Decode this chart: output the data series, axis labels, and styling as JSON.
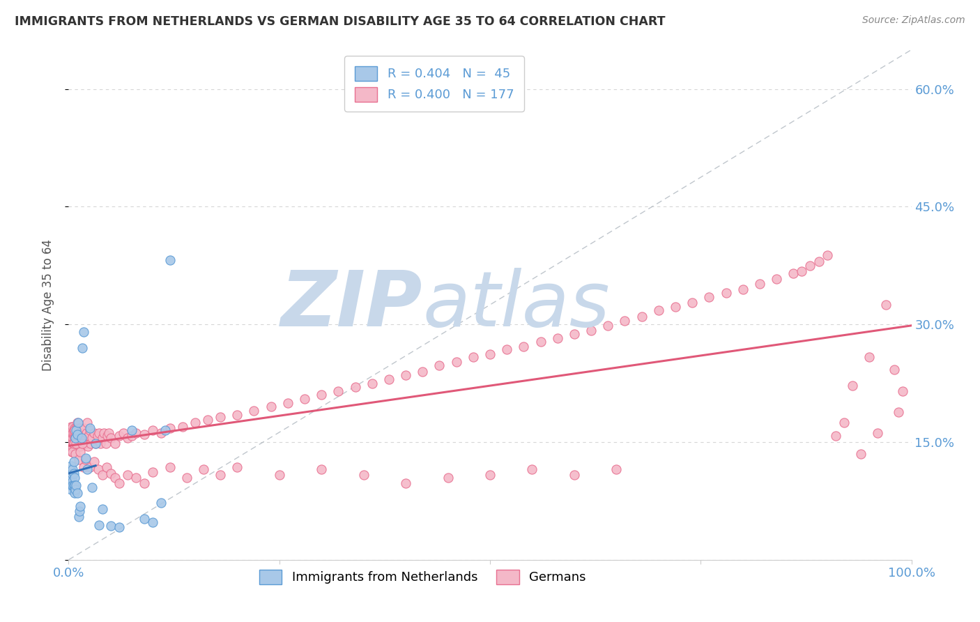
{
  "title": "IMMIGRANTS FROM NETHERLANDS VS GERMAN DISABILITY AGE 35 TO 64 CORRELATION CHART",
  "source": "Source: ZipAtlas.com",
  "ylabel": "Disability Age 35 to 64",
  "watermark_zip": "ZIP",
  "watermark_atlas": "atlas",
  "xlim": [
    0.0,
    1.0
  ],
  "ylim": [
    0.0,
    0.65
  ],
  "yticks": [
    0.0,
    0.15,
    0.3,
    0.45,
    0.6
  ],
  "xticks": [
    0.0,
    0.25,
    0.5,
    0.75,
    1.0
  ],
  "blue_color": "#a8c8e8",
  "pink_color": "#f4b8c8",
  "blue_edge": "#5b9bd5",
  "pink_edge": "#e87090",
  "trend_blue": "#3070b8",
  "trend_pink": "#e05878",
  "grid_color": "#cccccc",
  "background": "#ffffff",
  "title_color": "#333333",
  "axis_label_color": "#555555",
  "tick_color": "#5b9bd5",
  "watermark_color": "#c8d8ea",
  "legend_text_color": "#5b9bd5",
  "nl_x": [
    0.001,
    0.002,
    0.002,
    0.003,
    0.003,
    0.003,
    0.004,
    0.004,
    0.005,
    0.005,
    0.005,
    0.006,
    0.006,
    0.006,
    0.007,
    0.007,
    0.007,
    0.008,
    0.008,
    0.009,
    0.009,
    0.01,
    0.01,
    0.011,
    0.012,
    0.013,
    0.014,
    0.015,
    0.016,
    0.018,
    0.02,
    0.022,
    0.025,
    0.028,
    0.032,
    0.036,
    0.04,
    0.05,
    0.06,
    0.075,
    0.09,
    0.1,
    0.11,
    0.115,
    0.12
  ],
  "nl_y": [
    0.095,
    0.1,
    0.115,
    0.09,
    0.105,
    0.12,
    0.095,
    0.11,
    0.1,
    0.095,
    0.115,
    0.11,
    0.125,
    0.095,
    0.105,
    0.095,
    0.085,
    0.09,
    0.155,
    0.095,
    0.165,
    0.085,
    0.16,
    0.175,
    0.055,
    0.062,
    0.068,
    0.155,
    0.27,
    0.29,
    0.13,
    0.115,
    0.168,
    0.092,
    0.148,
    0.044,
    0.065,
    0.043,
    0.042,
    0.165,
    0.052,
    0.048,
    0.073,
    0.165,
    0.382
  ],
  "de_x": [
    0.001,
    0.001,
    0.001,
    0.002,
    0.002,
    0.002,
    0.002,
    0.003,
    0.003,
    0.003,
    0.003,
    0.003,
    0.003,
    0.004,
    0.004,
    0.004,
    0.004,
    0.004,
    0.005,
    0.005,
    0.005,
    0.005,
    0.005,
    0.006,
    0.006,
    0.006,
    0.006,
    0.007,
    0.007,
    0.007,
    0.007,
    0.008,
    0.008,
    0.008,
    0.008,
    0.009,
    0.009,
    0.009,
    0.01,
    0.01,
    0.01,
    0.01,
    0.011,
    0.011,
    0.011,
    0.012,
    0.012,
    0.012,
    0.013,
    0.013,
    0.014,
    0.014,
    0.015,
    0.015,
    0.016,
    0.016,
    0.017,
    0.018,
    0.019,
    0.02,
    0.021,
    0.022,
    0.023,
    0.024,
    0.025,
    0.026,
    0.028,
    0.03,
    0.032,
    0.034,
    0.036,
    0.038,
    0.04,
    0.042,
    0.044,
    0.046,
    0.048,
    0.05,
    0.055,
    0.06,
    0.065,
    0.07,
    0.075,
    0.08,
    0.09,
    0.1,
    0.11,
    0.12,
    0.135,
    0.15,
    0.165,
    0.18,
    0.2,
    0.22,
    0.24,
    0.26,
    0.28,
    0.3,
    0.32,
    0.34,
    0.36,
    0.38,
    0.4,
    0.42,
    0.44,
    0.46,
    0.48,
    0.5,
    0.52,
    0.54,
    0.56,
    0.58,
    0.6,
    0.62,
    0.64,
    0.66,
    0.68,
    0.7,
    0.72,
    0.74,
    0.76,
    0.78,
    0.8,
    0.82,
    0.84,
    0.86,
    0.87,
    0.88,
    0.89,
    0.9,
    0.91,
    0.92,
    0.93,
    0.94,
    0.95,
    0.96,
    0.97,
    0.98,
    0.985,
    0.99,
    0.005,
    0.006,
    0.007,
    0.008,
    0.009,
    0.01,
    0.012,
    0.014,
    0.016,
    0.018,
    0.02,
    0.025,
    0.03,
    0.035,
    0.04,
    0.045,
    0.05,
    0.055,
    0.06,
    0.07,
    0.08,
    0.09,
    0.1,
    0.12,
    0.14,
    0.16,
    0.18,
    0.2,
    0.25,
    0.3,
    0.35,
    0.4,
    0.45,
    0.5,
    0.55,
    0.6,
    0.65
  ],
  "de_y": [
    0.155,
    0.165,
    0.145,
    0.16,
    0.155,
    0.165,
    0.14,
    0.158,
    0.162,
    0.148,
    0.155,
    0.17,
    0.145,
    0.158,
    0.162,
    0.148,
    0.138,
    0.168,
    0.155,
    0.148,
    0.162,
    0.17,
    0.145,
    0.158,
    0.165,
    0.148,
    0.162,
    0.155,
    0.148,
    0.168,
    0.145,
    0.158,
    0.165,
    0.148,
    0.162,
    0.155,
    0.148,
    0.168,
    0.155,
    0.148,
    0.162,
    0.175,
    0.145,
    0.158,
    0.165,
    0.148,
    0.162,
    0.155,
    0.148,
    0.168,
    0.145,
    0.158,
    0.165,
    0.148,
    0.162,
    0.155,
    0.148,
    0.168,
    0.155,
    0.148,
    0.162,
    0.175,
    0.145,
    0.158,
    0.165,
    0.148,
    0.155,
    0.162,
    0.148,
    0.158,
    0.162,
    0.148,
    0.155,
    0.162,
    0.148,
    0.158,
    0.162,
    0.155,
    0.148,
    0.158,
    0.162,
    0.155,
    0.158,
    0.162,
    0.16,
    0.165,
    0.162,
    0.168,
    0.17,
    0.175,
    0.178,
    0.182,
    0.185,
    0.19,
    0.195,
    0.2,
    0.205,
    0.21,
    0.215,
    0.22,
    0.225,
    0.23,
    0.235,
    0.24,
    0.248,
    0.252,
    0.258,
    0.262,
    0.268,
    0.272,
    0.278,
    0.282,
    0.288,
    0.292,
    0.298,
    0.305,
    0.31,
    0.318,
    0.322,
    0.328,
    0.335,
    0.34,
    0.345,
    0.352,
    0.358,
    0.365,
    0.368,
    0.375,
    0.38,
    0.388,
    0.158,
    0.175,
    0.222,
    0.135,
    0.258,
    0.162,
    0.325,
    0.242,
    0.188,
    0.215,
    0.138,
    0.148,
    0.165,
    0.135,
    0.148,
    0.158,
    0.128,
    0.138,
    0.148,
    0.118,
    0.128,
    0.118,
    0.125,
    0.115,
    0.108,
    0.118,
    0.11,
    0.105,
    0.098,
    0.108,
    0.105,
    0.098,
    0.112,
    0.118,
    0.105,
    0.115,
    0.108,
    0.118,
    0.108,
    0.115,
    0.108,
    0.098,
    0.105,
    0.108,
    0.115,
    0.108,
    0.115
  ]
}
